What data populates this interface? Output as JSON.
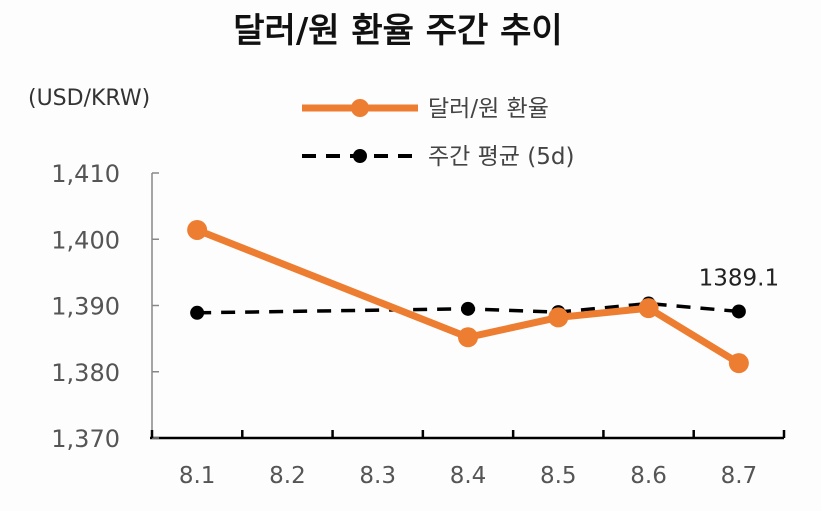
{
  "chart_data": {
    "type": "line",
    "title": "달러/원 환율 주간 추이",
    "unit_label": "(USD/KRW)",
    "categories": [
      "8.1",
      "8.2",
      "8.3",
      "8.4",
      "8.5",
      "8.6",
      "8.7"
    ],
    "ylim": [
      1370,
      1410
    ],
    "yticks": [
      1370,
      1380,
      1390,
      1400,
      1410
    ],
    "ytick_labels": [
      "1,370",
      "1,380",
      "1,390",
      "1,400",
      "1,410"
    ],
    "legend_position": "top-center",
    "grid": false,
    "series": [
      {
        "name": "달러/원 환율",
        "color": "#ED7D31",
        "style": "solid",
        "points": [
          {
            "x": "8.1",
            "y": 1401.4
          },
          {
            "x": "8.4",
            "y": 1385.2
          },
          {
            "x": "8.5",
            "y": 1388.2
          },
          {
            "x": "8.6",
            "y": 1389.6
          },
          {
            "x": "8.7",
            "y": 1381.3
          }
        ]
      },
      {
        "name": "주간 평균 (5d)",
        "color": "#000000",
        "style": "dashed",
        "points": [
          {
            "x": "8.1",
            "y": 1388.9
          },
          {
            "x": "8.4",
            "y": 1389.5
          },
          {
            "x": "8.5",
            "y": 1389.0
          },
          {
            "x": "8.6",
            "y": 1390.3
          },
          {
            "x": "8.7",
            "y": 1389.1
          }
        ]
      }
    ],
    "annotations": [
      {
        "text": "1389.1",
        "series": "주간 평균 (5d)",
        "x": "8.7"
      }
    ]
  }
}
